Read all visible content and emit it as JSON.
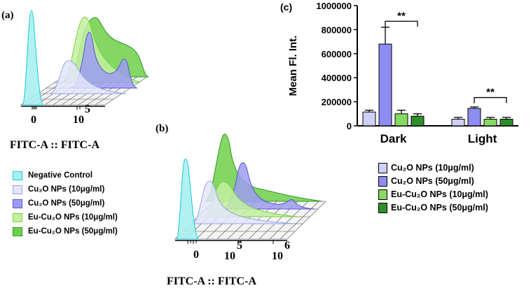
{
  "panel_a": {
    "label": "(a)",
    "x_axis_label": "FITC-A :: FITC-A",
    "ticks": [
      "0",
      "10",
      "5"
    ],
    "legend": [
      {
        "text": "Negative Control",
        "fill": "#a8f0f0",
        "stroke": "#19c9d1"
      },
      {
        "text": "Cu₂O NPs (10μg/ml)",
        "fill": "#e3e6fb",
        "stroke": "#9aa3e8"
      },
      {
        "text": "Cu₂O NPs (50μg/ml)",
        "fill": "#9c9cf0",
        "stroke": "#5a55d4"
      },
      {
        "text": "Eu-Cu₂O NPs (10μg/ml)",
        "fill": "#c3f0a0",
        "stroke": "#7ad23c"
      },
      {
        "text": "Eu-Cu₂O NPs (50μg/ml)",
        "fill": "#6ecf4a",
        "stroke": "#2f9a1f"
      }
    ]
  },
  "panel_b": {
    "label": "(b)",
    "x_axis_label": "FITC-A :: FITC-A",
    "ticks": [
      "0",
      "10",
      "5",
      "10",
      "6"
    ]
  },
  "panel_c": {
    "label": "(c)"
  },
  "colors": {
    "cyan": "#3fd8e0",
    "light_blue": "#cfd4f7",
    "blue": "#8f8fef",
    "light_green": "#8ede5a",
    "green": "#3aa52f",
    "dark_green": "#1f7d1f"
  },
  "chart_data": {
    "type": "bar",
    "title": "",
    "xlabel": "",
    "ylabel": "Mean Fl. Int.",
    "ylim": [
      0,
      1000000
    ],
    "yticks": [
      "0",
      "200000",
      "400000",
      "600000",
      "800000",
      "1000000"
    ],
    "categories": [
      "Dark",
      "Light"
    ],
    "series": [
      {
        "name": "Cu₂O NPs (10μg/ml)",
        "color": "#cfd0f7",
        "values": [
          115000,
          55000
        ],
        "errors": [
          15000,
          15000
        ]
      },
      {
        "name": "Cu₂O NPs (50μg/ml)",
        "color": "#8d8cf0",
        "values": [
          680000,
          145000
        ],
        "errors": [
          140000,
          12000
        ]
      },
      {
        "name": "Eu-Cu₂O NPs (10μg/ml)",
        "color": "#86da62",
        "values": [
          100000,
          55000
        ],
        "errors": [
          30000,
          15000
        ]
      },
      {
        "name": "Eu-Cu₂O NPs (50μg/ml)",
        "color": "#2e8f2a",
        "values": [
          80000,
          55000
        ],
        "errors": [
          20000,
          15000
        ]
      }
    ],
    "annotations": [
      {
        "text": "**",
        "category": "Dark",
        "from_series": 1,
        "to_series": 3,
        "y": 870000
      },
      {
        "text": "**",
        "category": "Light",
        "from_series": 1,
        "to_series": 3,
        "y": 235000
      }
    ]
  }
}
